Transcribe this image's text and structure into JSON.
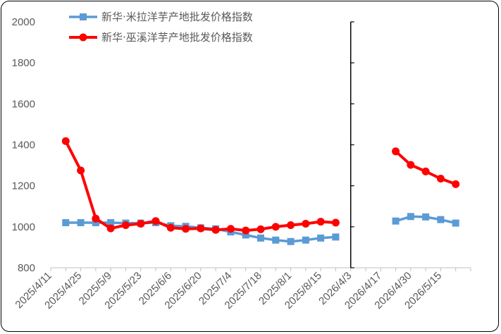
{
  "chart_data": {
    "type": "line",
    "title": "",
    "xlabel": "",
    "ylabel": "",
    "ylim": [
      800,
      2000
    ],
    "yticks": [
      800,
      1000,
      1200,
      1400,
      1600,
      1800,
      2000
    ],
    "grid": false,
    "legend_position": "top-left",
    "xtick_labels": [
      "2025/4/11",
      "2025/4/25",
      "2025/5/9",
      "2025/5/23",
      "2025/6/6",
      "2025/6/20",
      "2025/7/4",
      "2025/7/18",
      "2025/8/1",
      "2025/8/15",
      "2026/4/3",
      "2026/4/17",
      "2026/4/30",
      "2026/5/15"
    ],
    "categories": [
      "2025/4/11",
      "2025/4/18",
      "2025/4/25",
      "2025/5/2",
      "2025/5/9",
      "2025/5/16",
      "2025/5/23",
      "2025/5/30",
      "2025/6/6",
      "2025/6/13",
      "2025/6/20",
      "2025/6/27",
      "2025/7/4",
      "2025/7/11",
      "2025/7/18",
      "2025/7/25",
      "2025/8/1",
      "2025/8/8",
      "2025/8/15",
      "2025/8/22",
      "2026/4/3",
      "2026/4/10",
      "2026/4/17",
      "2026/4/24",
      "2026/4/30",
      "2026/5/8",
      "2026/5/15",
      "2026/5/22",
      "2026/5/29"
    ],
    "series": [
      {
        "name": "新华·米拉洋芋产地批发价格指数",
        "color": "#5b9bd5",
        "marker": "square",
        "values": [
          null,
          1020,
          1020,
          1020,
          1020,
          1018,
          1018,
          1020,
          1005,
          1002,
          995,
          990,
          975,
          960,
          945,
          935,
          928,
          935,
          945,
          950,
          null,
          null,
          null,
          1028,
          1050,
          1048,
          1035,
          1018,
          null
        ]
      },
      {
        "name": "新华·巫溪洋芋产地批发价格指数",
        "color": "#ff0000",
        "marker": "circle",
        "values": [
          null,
          1418,
          1275,
          1040,
          992,
          1008,
          1015,
          1028,
          995,
          990,
          992,
          985,
          990,
          982,
          988,
          1000,
          1008,
          1015,
          1025,
          1020,
          null,
          null,
          null,
          1368,
          1302,
          1270,
          1235,
          1208,
          null
        ]
      }
    ],
    "x_axis_crossing_category": "2026/4/3"
  }
}
